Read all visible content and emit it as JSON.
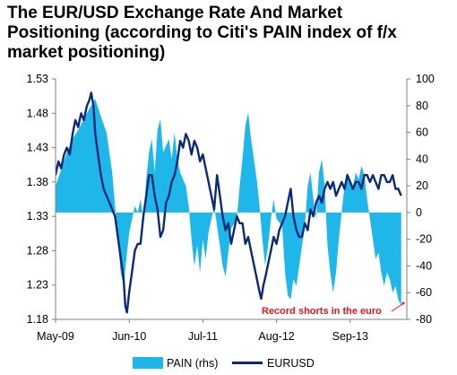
{
  "title_lines": [
    "The EUR/USD Exchange Rate And Market",
    "Positioning (according to Citi's PAIN index of f/x",
    "market positioning)"
  ],
  "chart_data": {
    "type": "area",
    "title": "The EUR/USD Exchange Rate And Market Positioning (according to Citi's PAIN index of f/x market positioning)",
    "x_ticks": [
      "May-09",
      "Jun-10",
      "Jul-11",
      "Aug-12",
      "Sep-13"
    ],
    "y_left": {
      "ylim": [
        1.18,
        1.53
      ],
      "ticks": [
        "1.53",
        "1.48",
        "1.43",
        "1.38",
        "1.33",
        "1.28",
        "1.23",
        "1.18"
      ]
    },
    "y_right": {
      "ylim": [
        -80,
        100
      ],
      "ticks": [
        "100",
        "80",
        "60",
        "40",
        "20",
        "0",
        "-20",
        "-40",
        "-60",
        "-80"
      ]
    },
    "x_unit": "months since May-09",
    "xlim": [
      0,
      62
    ],
    "series": [
      {
        "name": "PAIN (rhs)",
        "type": "area",
        "axis": "right",
        "color": "#1fb7ea",
        "points": [
          [
            0,
            20
          ],
          [
            1,
            32
          ],
          [
            2,
            45
          ],
          [
            3,
            55
          ],
          [
            4,
            62
          ],
          [
            5,
            70
          ],
          [
            6,
            78
          ],
          [
            7,
            85
          ],
          [
            8,
            72
          ],
          [
            9,
            60
          ],
          [
            10,
            30
          ],
          [
            10.5,
            5
          ],
          [
            11,
            -20
          ],
          [
            11.5,
            -45
          ],
          [
            12,
            -55
          ],
          [
            12.5,
            -35
          ],
          [
            13,
            -15
          ],
          [
            14,
            5
          ],
          [
            14.5,
            0
          ],
          [
            15,
            10
          ],
          [
            15.5,
            -5
          ],
          [
            16,
            25
          ],
          [
            16.5,
            45
          ],
          [
            17,
            55
          ],
          [
            17.5,
            30
          ],
          [
            18,
            62
          ],
          [
            18.5,
            70
          ],
          [
            19,
            45
          ],
          [
            20,
            55
          ],
          [
            20.5,
            40
          ],
          [
            21,
            60
          ],
          [
            21.5,
            40
          ],
          [
            22,
            30
          ],
          [
            23,
            20
          ],
          [
            23.5,
            5
          ],
          [
            24,
            -20
          ],
          [
            24.5,
            -40
          ],
          [
            25,
            -25
          ],
          [
            25.5,
            -45
          ],
          [
            26,
            -20
          ],
          [
            26.5,
            -35
          ],
          [
            27,
            -15
          ],
          [
            28,
            5
          ],
          [
            28.5,
            -10
          ],
          [
            29,
            -25
          ],
          [
            29.5,
            -40
          ],
          [
            30,
            -48
          ],
          [
            30.5,
            -30
          ],
          [
            31,
            -12
          ],
          [
            32,
            -5
          ],
          [
            32.5,
            20
          ],
          [
            33,
            40
          ],
          [
            33.5,
            65
          ],
          [
            34,
            75
          ],
          [
            34.5,
            55
          ],
          [
            35,
            40
          ],
          [
            35.5,
            25
          ],
          [
            36,
            5
          ],
          [
            36.5,
            -20
          ],
          [
            37,
            -40
          ],
          [
            37.5,
            -25
          ],
          [
            38,
            -5
          ],
          [
            38.5,
            10
          ],
          [
            39,
            -5
          ],
          [
            40,
            -10
          ],
          [
            40.5,
            -45
          ],
          [
            41,
            -62
          ],
          [
            41.5,
            -65
          ],
          [
            42,
            -50
          ],
          [
            42.5,
            -55
          ],
          [
            43,
            -40
          ],
          [
            43.5,
            -25
          ],
          [
            44,
            -10
          ],
          [
            44.5,
            20
          ],
          [
            45,
            30
          ],
          [
            45.5,
            10
          ],
          [
            46,
            -5
          ],
          [
            46.5,
            30
          ],
          [
            47,
            40
          ],
          [
            47.5,
            20
          ],
          [
            48,
            -25
          ],
          [
            48.5,
            -45
          ],
          [
            49,
            -60
          ],
          [
            49.5,
            -45
          ],
          [
            50,
            -20
          ],
          [
            50.5,
            0
          ],
          [
            51,
            20
          ],
          [
            51.5,
            30
          ],
          [
            52,
            25
          ],
          [
            52.5,
            20
          ],
          [
            53,
            30
          ],
          [
            53.5,
            25
          ],
          [
            54,
            35
          ],
          [
            54.5,
            28
          ],
          [
            55,
            10
          ],
          [
            55.5,
            -5
          ],
          [
            56,
            -20
          ],
          [
            56.5,
            -35
          ],
          [
            57,
            -30
          ],
          [
            57.5,
            -45
          ],
          [
            58,
            -55
          ],
          [
            58.5,
            -45
          ],
          [
            59,
            -50
          ],
          [
            59.5,
            -60
          ],
          [
            60,
            -55
          ],
          [
            60.5,
            -65
          ],
          [
            61,
            -70
          ]
        ]
      },
      {
        "name": "EURUSD",
        "type": "line",
        "axis": "left",
        "color": "#0a2a78",
        "points": [
          [
            0,
            1.39
          ],
          [
            0.5,
            1.41
          ],
          [
            1,
            1.4
          ],
          [
            1.5,
            1.42
          ],
          [
            2,
            1.43
          ],
          [
            2.5,
            1.42
          ],
          [
            3,
            1.45
          ],
          [
            3.5,
            1.47
          ],
          [
            4,
            1.46
          ],
          [
            4.5,
            1.48
          ],
          [
            5,
            1.47
          ],
          [
            5.5,
            1.49
          ],
          [
            6,
            1.5
          ],
          [
            6.3,
            1.51
          ],
          [
            6.7,
            1.49
          ],
          [
            7,
            1.45
          ],
          [
            7.5,
            1.42
          ],
          [
            8,
            1.39
          ],
          [
            8.5,
            1.37
          ],
          [
            9,
            1.36
          ],
          [
            9.5,
            1.35
          ],
          [
            10,
            1.34
          ],
          [
            10.5,
            1.33
          ],
          [
            11,
            1.3
          ],
          [
            11.5,
            1.27
          ],
          [
            12,
            1.24
          ],
          [
            12.3,
            1.2
          ],
          [
            12.6,
            1.19
          ],
          [
            13,
            1.22
          ],
          [
            13.5,
            1.25
          ],
          [
            14,
            1.28
          ],
          [
            14.5,
            1.29
          ],
          [
            15,
            1.29
          ],
          [
            15.5,
            1.33
          ],
          [
            16,
            1.36
          ],
          [
            16.5,
            1.39
          ],
          [
            17,
            1.39
          ],
          [
            17.5,
            1.36
          ],
          [
            18,
            1.34
          ],
          [
            18.5,
            1.3
          ],
          [
            19,
            1.31
          ],
          [
            19.5,
            1.35
          ],
          [
            20,
            1.36
          ],
          [
            20.5,
            1.38
          ],
          [
            21,
            1.39
          ],
          [
            21.5,
            1.41
          ],
          [
            22,
            1.44
          ],
          [
            22.5,
            1.43
          ],
          [
            23,
            1.45
          ],
          [
            23.5,
            1.44
          ],
          [
            24,
            1.42
          ],
          [
            24.5,
            1.44
          ],
          [
            25,
            1.43
          ],
          [
            25.5,
            1.41
          ],
          [
            26,
            1.42
          ],
          [
            26.5,
            1.4
          ],
          [
            27,
            1.38
          ],
          [
            27.5,
            1.36
          ],
          [
            28,
            1.34
          ],
          [
            28.5,
            1.39
          ],
          [
            29,
            1.36
          ],
          [
            29.5,
            1.33
          ],
          [
            30,
            1.31
          ],
          [
            30.5,
            1.32
          ],
          [
            31,
            1.29
          ],
          [
            31.5,
            1.31
          ],
          [
            32,
            1.33
          ],
          [
            32.5,
            1.32
          ],
          [
            33,
            1.32
          ],
          [
            33.5,
            1.29
          ],
          [
            34,
            1.3
          ],
          [
            34.5,
            1.28
          ],
          [
            35,
            1.26
          ],
          [
            35.5,
            1.24
          ],
          [
            36,
            1.22
          ],
          [
            36.3,
            1.21
          ],
          [
            36.7,
            1.23
          ],
          [
            37,
            1.24
          ],
          [
            37.5,
            1.26
          ],
          [
            38,
            1.28
          ],
          [
            38.5,
            1.3
          ],
          [
            39,
            1.29
          ],
          [
            39.5,
            1.31
          ],
          [
            40,
            1.32
          ],
          [
            40.5,
            1.33
          ],
          [
            41,
            1.35
          ],
          [
            41.5,
            1.37
          ],
          [
            42,
            1.33
          ],
          [
            42.5,
            1.31
          ],
          [
            43,
            1.3
          ],
          [
            43.5,
            1.3
          ],
          [
            44,
            1.32
          ],
          [
            44.5,
            1.31
          ],
          [
            45,
            1.34
          ],
          [
            45.5,
            1.33
          ],
          [
            46,
            1.35
          ],
          [
            46.5,
            1.36
          ],
          [
            47,
            1.35
          ],
          [
            47.5,
            1.37
          ],
          [
            48,
            1.38
          ],
          [
            48.5,
            1.37
          ],
          [
            49,
            1.38
          ],
          [
            49.5,
            1.36
          ],
          [
            50,
            1.37
          ],
          [
            50.5,
            1.38
          ],
          [
            51,
            1.37
          ],
          [
            51.5,
            1.39
          ],
          [
            52,
            1.38
          ],
          [
            52.5,
            1.37
          ],
          [
            53,
            1.38
          ],
          [
            53.5,
            1.38
          ],
          [
            54,
            1.37
          ],
          [
            54.5,
            1.39
          ],
          [
            55,
            1.39
          ],
          [
            55.5,
            1.38
          ],
          [
            56,
            1.39
          ],
          [
            56.5,
            1.38
          ],
          [
            57,
            1.37
          ],
          [
            57.5,
            1.39
          ],
          [
            58,
            1.39
          ],
          [
            58.5,
            1.38
          ],
          [
            59,
            1.38
          ],
          [
            59.5,
            1.39
          ],
          [
            60,
            1.37
          ],
          [
            60.5,
            1.37
          ],
          [
            61,
            1.36
          ]
        ]
      }
    ],
    "legend": {
      "placement": "bottom",
      "items": [
        "PAIN (rhs)",
        "EURUSD"
      ]
    },
    "annotation": "Record shorts in the euro",
    "grid": false
  }
}
